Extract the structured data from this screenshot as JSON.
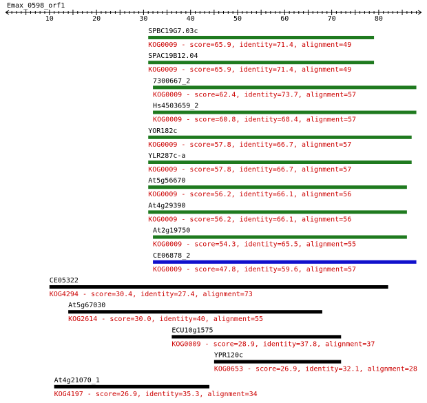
{
  "query": {
    "name": "Emax_0598_orf1",
    "axis_ticks": [
      10,
      20,
      30,
      40,
      50,
      60,
      70,
      80
    ]
  },
  "colors": {
    "desc_text": "#cc0000",
    "name_text": "#000000",
    "bar_green": "#1f7a1f",
    "bar_blue": "#1010cc",
    "bar_black": "#000000"
  },
  "hits": [
    {
      "name": "SPBC19G7.03c",
      "desc": "KOG0009 - score=65.9, identity=71.4, alignment=49",
      "start": 31,
      "end": 79,
      "color": "green"
    },
    {
      "name": "SPAC19B12.04",
      "desc": "KOG0009 - score=65.9, identity=71.4, alignment=49",
      "start": 31,
      "end": 79,
      "color": "green"
    },
    {
      "name": "7300667_2",
      "desc": "KOG0009 - score=62.4, identity=73.7, alignment=57",
      "start": 32,
      "end": 88,
      "color": "green"
    },
    {
      "name": "Hs4503659_2",
      "desc": "KOG0009 - score=60.8, identity=68.4, alignment=57",
      "start": 32,
      "end": 88,
      "color": "green"
    },
    {
      "name": "YOR182c",
      "desc": "KOG0009 - score=57.8, identity=66.7, alignment=57",
      "start": 31,
      "end": 87,
      "color": "green"
    },
    {
      "name": "YLR287c-a",
      "desc": "KOG0009 - score=57.8, identity=66.7, alignment=57",
      "start": 31,
      "end": 87,
      "color": "green"
    },
    {
      "name": "At5g56670",
      "desc": "KOG0009 - score=56.2, identity=66.1, alignment=56",
      "start": 31,
      "end": 86,
      "color": "green"
    },
    {
      "name": "At4g29390",
      "desc": "KOG0009 - score=56.2, identity=66.1, alignment=56",
      "start": 31,
      "end": 86,
      "color": "green"
    },
    {
      "name": "At2g19750",
      "desc": "KOG0009 - score=54.3, identity=65.5, alignment=55",
      "start": 32,
      "end": 86,
      "color": "green"
    },
    {
      "name": "CE06878_2",
      "desc": "KOG0009 - score=47.8, identity=59.6, alignment=57",
      "start": 32,
      "end": 88,
      "color": "blue"
    },
    {
      "name": "CE05322",
      "desc": "KOG4294 - score=30.4, identity=27.4, alignment=73",
      "start": 10,
      "end": 82,
      "color": "black"
    },
    {
      "name": "At5g67030",
      "desc": "KOG2614 - score=30.0, identity=40, alignment=55",
      "start": 14,
      "end": 68,
      "color": "black"
    },
    {
      "name": "ECU10g1575",
      "desc": "KOG0009 - score=28.9, identity=37.8, alignment=37",
      "start": 36,
      "end": 72,
      "color": "black"
    },
    {
      "name": "YPR120c",
      "desc": "KOG0653 - score=26.9, identity=32.1, alignment=28",
      "start": 45,
      "end": 72,
      "color": "black"
    },
    {
      "name": "At4g21070_1",
      "desc": "KOG4197 - score=26.9, identity=35.3, alignment=34",
      "start": 11,
      "end": 44,
      "color": "black"
    }
  ]
}
